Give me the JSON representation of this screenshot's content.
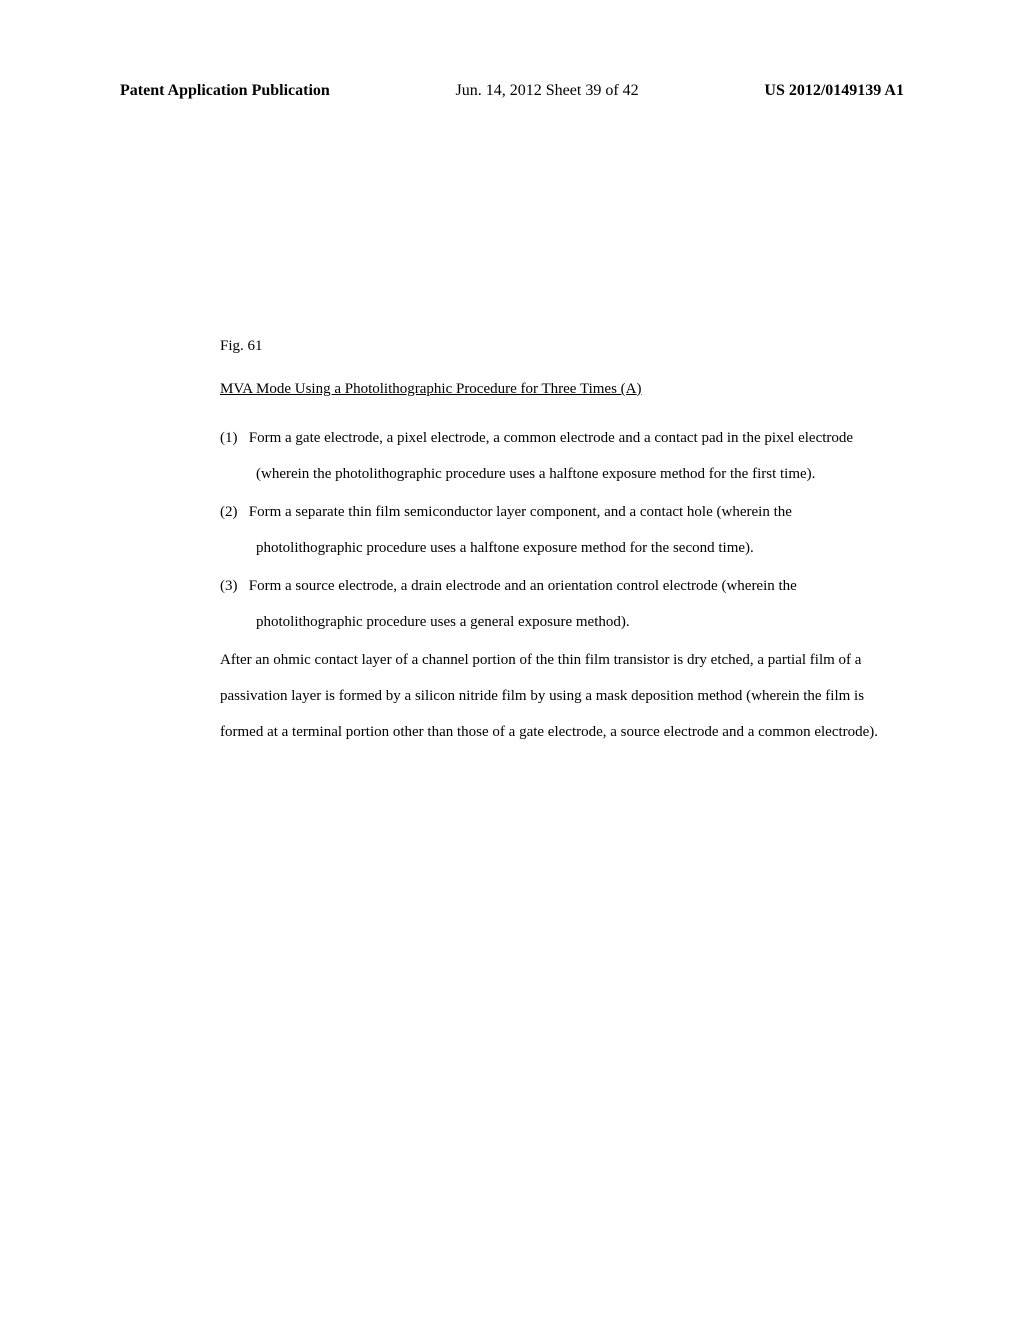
{
  "header": {
    "left": "Patent Application Publication",
    "center": "Jun. 14, 2012  Sheet 39 of 42",
    "right": "US 2012/0149139 A1"
  },
  "content": {
    "figLabel": "Fig. 61",
    "sectionTitle": "MVA Mode Using a Photolithographic Procedure for Three Times (A)",
    "items": [
      {
        "number": "(1)",
        "text": "Form a gate electrode, a pixel electrode, a common electrode and a contact pad in the pixel electrode (wherein the photolithographic procedure uses a halftone exposure method for the first time)."
      },
      {
        "number": "(2)",
        "text": "Form a separate thin film semiconductor layer component, and a contact hole (wherein the photolithographic procedure uses a halftone exposure method for the second time)."
      },
      {
        "number": "(3)",
        "text": "Form a source electrode, a drain electrode and an orientation control electrode (wherein the photolithographic procedure uses a general exposure method)."
      }
    ],
    "paragraph": "After an ohmic contact layer of a channel portion of the thin film transistor is dry etched, a partial film of a passivation layer is formed by a silicon nitride film by using a mask deposition method (wherein the film is formed at a terminal portion other than those of a gate electrode, a source electrode and a common electrode)."
  }
}
